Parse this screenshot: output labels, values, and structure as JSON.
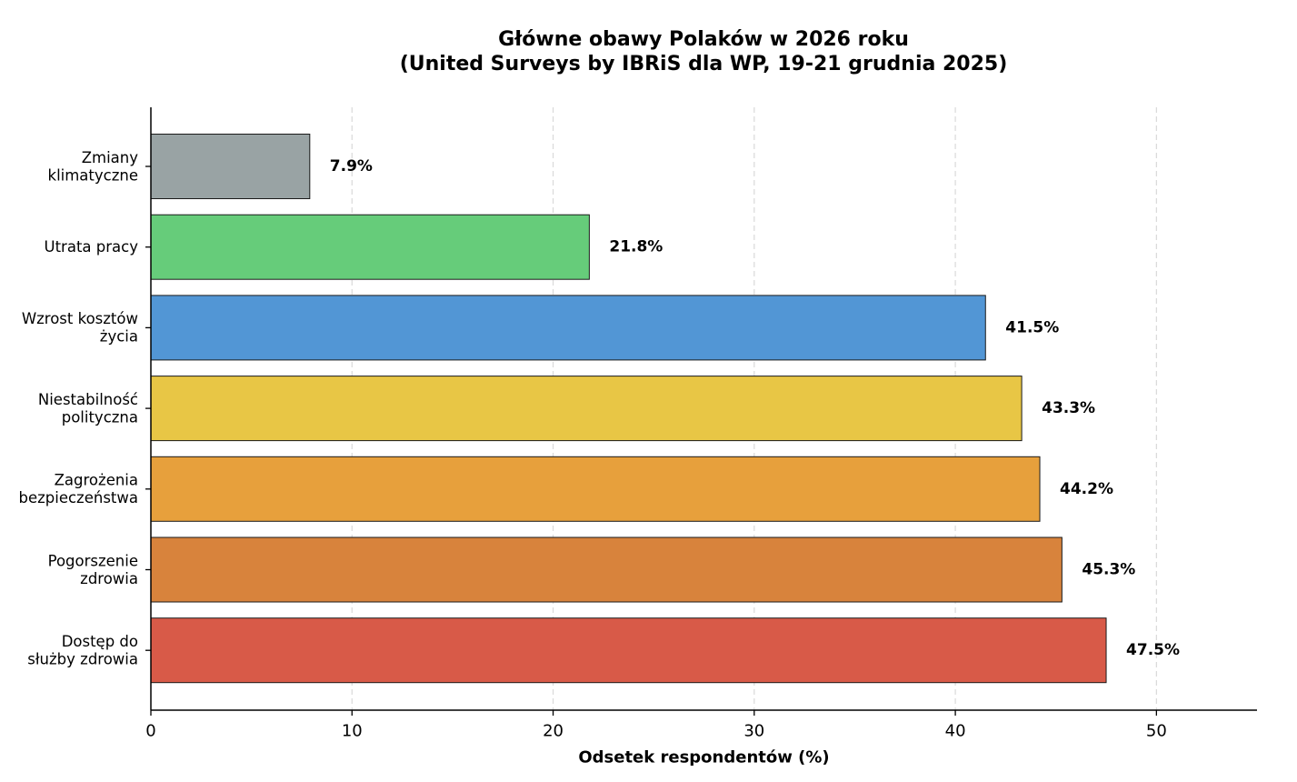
{
  "chart_data": {
    "type": "bar",
    "orientation": "horizontal",
    "title": [
      "Główne obawy Polaków w 2026 roku",
      "(United Surveys by IBRiS dla WP, 19-21 grudnia 2025)"
    ],
    "xlabel": "Odsetek respondentów (%)",
    "ylabel": "",
    "xlim": [
      0,
      55
    ],
    "xticks": [
      0,
      10,
      20,
      30,
      40,
      50
    ],
    "grid": "x-dashed",
    "categories": [
      [
        "Zmiany",
        "klimatyczne"
      ],
      [
        "Utrata pracy"
      ],
      [
        "Wzrost kosztów",
        "życia"
      ],
      [
        "Niestabilność",
        "polityczna"
      ],
      [
        "Zagrożenia",
        "bezpieczeństwa"
      ],
      [
        "Pogorszenie",
        "zdrowia"
      ],
      [
        "Dostęp do",
        "służby zdrowia"
      ]
    ],
    "values": [
      7.9,
      21.8,
      41.5,
      43.3,
      44.2,
      45.3,
      47.5
    ],
    "value_labels": [
      "7.9%",
      "21.8%",
      "41.5%",
      "43.3%",
      "44.2%",
      "45.3%",
      "47.5%"
    ],
    "colors": [
      "#99a3a4",
      "#66cc7a",
      "#5296d5",
      "#e8c645",
      "#e7a03c",
      "#d8833c",
      "#d85a48"
    ]
  }
}
